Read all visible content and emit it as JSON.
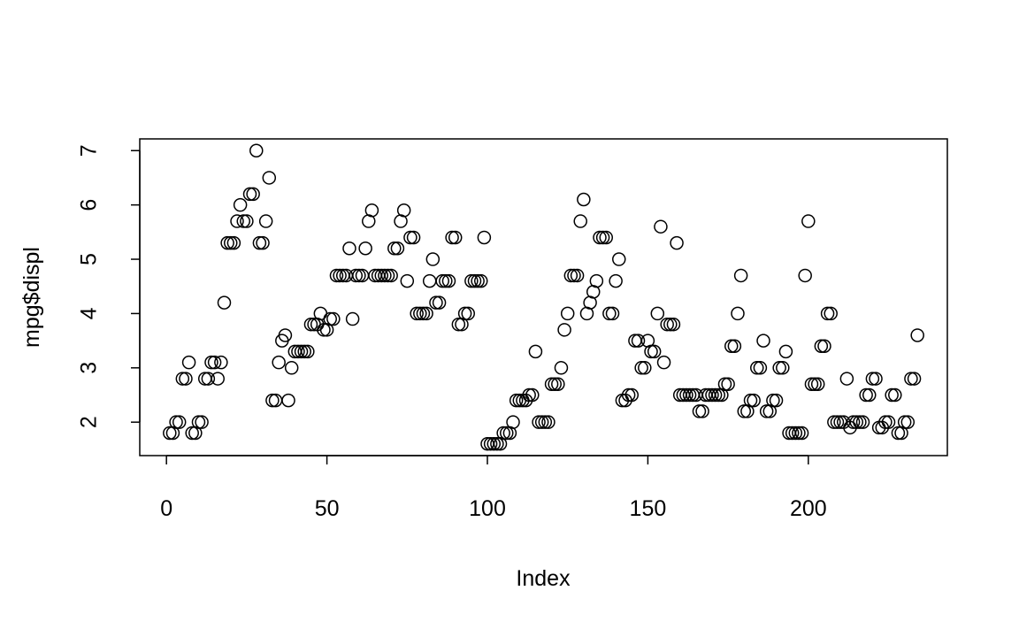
{
  "chart_data": {
    "type": "scatter",
    "x_label": "Index",
    "y_label": "mpg$displ",
    "x": [
      1,
      2,
      3,
      4,
      5,
      6,
      7,
      8,
      9,
      10,
      11,
      12,
      13,
      14,
      15,
      16,
      17,
      18,
      19,
      20,
      21,
      22,
      23,
      24,
      25,
      26,
      27,
      28,
      29,
      30,
      31,
      32,
      33,
      34,
      35,
      36,
      37,
      38,
      39,
      40,
      41,
      42,
      43,
      44,
      45,
      46,
      47,
      48,
      49,
      50,
      51,
      52,
      53,
      54,
      55,
      56,
      57,
      58,
      59,
      60,
      61,
      62,
      63,
      64,
      65,
      66,
      67,
      68,
      69,
      70,
      71,
      72,
      73,
      74,
      75,
      76,
      77,
      78,
      79,
      80,
      81,
      82,
      83,
      84,
      85,
      86,
      87,
      88,
      89,
      90,
      91,
      92,
      93,
      94,
      95,
      96,
      97,
      98,
      99,
      100,
      101,
      102,
      103,
      104,
      105,
      106,
      107,
      108,
      109,
      110,
      111,
      112,
      113,
      114,
      115,
      116,
      117,
      118,
      119,
      120,
      121,
      122,
      123,
      124,
      125,
      126,
      127,
      128,
      129,
      130,
      131,
      132,
      133,
      134,
      135,
      136,
      137,
      138,
      139,
      140,
      141,
      142,
      143,
      144,
      145,
      146,
      147,
      148,
      149,
      150,
      151,
      152,
      153,
      154,
      155,
      156,
      157,
      158,
      159,
      160,
      161,
      162,
      163,
      164,
      165,
      166,
      167,
      168,
      169,
      170,
      171,
      172,
      173,
      174,
      175,
      176,
      177,
      178,
      179,
      180,
      181,
      182,
      183,
      184,
      185,
      186,
      187,
      188,
      189,
      190,
      191,
      192,
      193,
      194,
      195,
      196,
      197,
      198,
      199,
      200,
      201,
      202,
      203,
      204,
      205,
      206,
      207,
      208,
      209,
      210,
      211,
      212,
      213,
      214,
      215,
      216,
      217,
      218,
      219,
      220,
      221,
      222,
      223,
      224,
      225,
      226,
      227,
      228,
      229,
      230,
      231,
      232,
      233,
      234
    ],
    "values": [
      1.8,
      1.8,
      2.0,
      2.0,
      2.8,
      2.8,
      3.1,
      1.8,
      1.8,
      2.0,
      2.0,
      2.8,
      2.8,
      3.1,
      3.1,
      2.8,
      3.1,
      4.2,
      5.3,
      5.3,
      5.3,
      5.7,
      6.0,
      5.7,
      5.7,
      6.2,
      6.2,
      7.0,
      5.3,
      5.3,
      5.7,
      6.5,
      2.4,
      2.4,
      3.1,
      3.5,
      3.6,
      2.4,
      3.0,
      3.3,
      3.3,
      3.3,
      3.3,
      3.3,
      3.8,
      3.8,
      3.8,
      4.0,
      3.7,
      3.7,
      3.9,
      3.9,
      4.7,
      4.7,
      4.7,
      4.7,
      5.2,
      3.9,
      4.7,
      4.7,
      4.7,
      5.2,
      5.7,
      5.9,
      4.7,
      4.7,
      4.7,
      4.7,
      4.7,
      4.7,
      5.2,
      5.2,
      5.7,
      5.9,
      4.6,
      5.4,
      5.4,
      4.0,
      4.0,
      4.0,
      4.0,
      4.6,
      5.0,
      4.2,
      4.2,
      4.6,
      4.6,
      4.6,
      5.4,
      5.4,
      3.8,
      3.8,
      4.0,
      4.0,
      4.6,
      4.6,
      4.6,
      4.6,
      5.4,
      1.6,
      1.6,
      1.6,
      1.6,
      1.6,
      1.8,
      1.8,
      1.8,
      2.0,
      2.4,
      2.4,
      2.4,
      2.4,
      2.5,
      2.5,
      3.3,
      2.0,
      2.0,
      2.0,
      2.0,
      2.7,
      2.7,
      2.7,
      3.0,
      3.7,
      4.0,
      4.7,
      4.7,
      4.7,
      5.7,
      6.1,
      4.0,
      4.2,
      4.4,
      4.6,
      5.4,
      5.4,
      5.4,
      4.0,
      4.0,
      4.6,
      5.0,
      2.4,
      2.4,
      2.5,
      2.5,
      3.5,
      3.5,
      3.0,
      3.0,
      3.5,
      3.3,
      3.3,
      4.0,
      5.6,
      3.1,
      3.8,
      3.8,
      3.8,
      5.3,
      2.5,
      2.5,
      2.5,
      2.5,
      2.5,
      2.5,
      2.2,
      2.2,
      2.5,
      2.5,
      2.5,
      2.5,
      2.5,
      2.5,
      2.7,
      2.7,
      3.4,
      3.4,
      4.0,
      4.7,
      2.2,
      2.2,
      2.4,
      2.4,
      3.0,
      3.0,
      3.5,
      2.2,
      2.2,
      2.4,
      2.4,
      3.0,
      3.0,
      3.3,
      1.8,
      1.8,
      1.8,
      1.8,
      1.8,
      4.7,
      5.7,
      2.7,
      2.7,
      2.7,
      3.4,
      3.4,
      4.0,
      4.0,
      2.0,
      2.0,
      2.0,
      2.0,
      2.8,
      1.9,
      2.0,
      2.0,
      2.0,
      2.0,
      2.5,
      2.5,
      2.8,
      2.8,
      1.9,
      1.9,
      2.0,
      2.0,
      2.5,
      2.5,
      1.8,
      1.8,
      2.0,
      2.0,
      2.8,
      2.8,
      3.6
    ],
    "xlim": [
      -8.32,
      243.32
    ],
    "ylim": [
      1.384,
      7.216
    ],
    "xticks": [
      0,
      50,
      100,
      150,
      200
    ],
    "yticks": [
      2,
      3,
      4,
      5,
      6,
      7
    ],
    "color": "#000000"
  }
}
